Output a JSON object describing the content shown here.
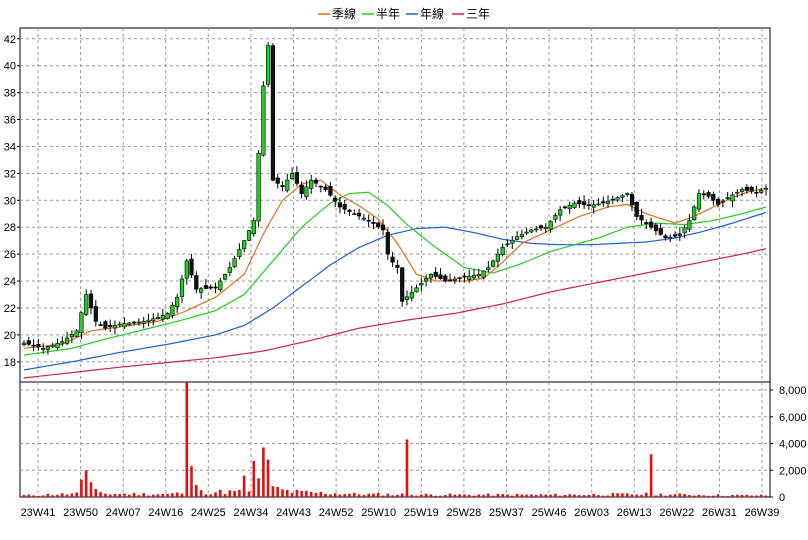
{
  "chart_data": {
    "type": "candlestick",
    "legend": [
      {
        "name": "季線",
        "color": "#e07020"
      },
      {
        "name": "半年",
        "color": "#22cc22"
      },
      {
        "name": "年線",
        "color": "#2060d0"
      },
      {
        "name": "三年",
        "color": "#cc2060"
      }
    ],
    "price_axis": {
      "ylim": [
        16.5,
        42.8
      ],
      "ticks": [
        18,
        20,
        22,
        24,
        26,
        28,
        30,
        32,
        34,
        36,
        38,
        40,
        42
      ]
    },
    "volume_axis": {
      "ylim": [
        0,
        8600
      ],
      "ticks": [
        "0",
        "2,000",
        "4,000",
        "6,000",
        "8,000"
      ],
      "tick_values": [
        0,
        2000,
        4000,
        6000,
        8000
      ]
    },
    "x_ticks": [
      "23W41",
      "23W50",
      "24W07",
      "24W16",
      "24W25",
      "24W34",
      "24W43",
      "24W52",
      "25W10",
      "25W19",
      "25W28",
      "25W37",
      "25W46",
      "26W03",
      "26W13",
      "26W22",
      "26W31",
      "26W39"
    ],
    "anchors": {
      "close": [
        [
          0,
          19.4
        ],
        [
          4,
          19.0
        ],
        [
          8,
          19.5
        ],
        [
          11,
          20.3
        ],
        [
          13,
          23.0
        ],
        [
          15,
          21.0
        ],
        [
          17,
          20.5
        ],
        [
          20,
          20.8
        ],
        [
          25,
          21.0
        ],
        [
          28,
          21.3
        ],
        [
          30,
          21.6
        ],
        [
          32,
          22.8
        ],
        [
          34,
          25.5
        ],
        [
          36,
          23.4
        ],
        [
          40,
          23.5
        ],
        [
          43,
          25.0
        ],
        [
          46,
          27.0
        ],
        [
          48,
          28.5
        ],
        [
          50,
          38.5
        ],
        [
          51,
          41.5
        ],
        [
          52,
          31.5
        ],
        [
          54,
          31.0
        ],
        [
          56,
          32.0
        ],
        [
          58,
          30.5
        ],
        [
          60,
          31.5
        ],
        [
          63,
          30.8
        ],
        [
          66,
          29.5
        ],
        [
          69,
          29.0
        ],
        [
          72,
          28.5
        ],
        [
          75,
          27.8
        ],
        [
          76,
          26.0
        ],
        [
          77,
          25.4
        ],
        [
          78,
          25.0
        ],
        [
          79,
          22.5
        ],
        [
          82,
          23.5
        ],
        [
          85,
          24.5
        ],
        [
          88,
          24.0
        ],
        [
          92,
          24.3
        ],
        [
          95,
          24.5
        ],
        [
          97,
          25.0
        ],
        [
          100,
          26.5
        ],
        [
          103,
          27.3
        ],
        [
          106,
          27.8
        ],
        [
          109,
          28.0
        ],
        [
          112,
          29.3
        ],
        [
          115,
          29.8
        ],
        [
          118,
          29.6
        ],
        [
          121,
          29.8
        ],
        [
          124,
          30.2
        ],
        [
          126,
          30.5
        ],
        [
          128,
          28.8
        ],
        [
          131,
          28.0
        ],
        [
          134,
          27.2
        ],
        [
          137,
          27.4
        ],
        [
          139,
          28.5
        ],
        [
          141,
          30.5
        ],
        [
          143,
          30.3
        ],
        [
          145,
          29.7
        ],
        [
          147,
          30.2
        ],
        [
          150,
          30.8
        ],
        [
          153,
          30.6
        ],
        [
          155,
          30.9
        ]
      ],
      "q_ma": [
        [
          0,
          19.0
        ],
        [
          8,
          19.3
        ],
        [
          14,
          20.3
        ],
        [
          20,
          20.6
        ],
        [
          28,
          21.0
        ],
        [
          34,
          21.8
        ],
        [
          40,
          22.8
        ],
        [
          46,
          24.5
        ],
        [
          50,
          27.5
        ],
        [
          54,
          30.0
        ],
        [
          58,
          31.2
        ],
        [
          62,
          31.5
        ],
        [
          66,
          30.4
        ],
        [
          70,
          29.6
        ],
        [
          74,
          28.6
        ],
        [
          78,
          26.8
        ],
        [
          82,
          24.5
        ],
        [
          86,
          24.0
        ],
        [
          92,
          24.0
        ],
        [
          96,
          24.2
        ],
        [
          100,
          25.4
        ],
        [
          104,
          26.8
        ],
        [
          110,
          27.8
        ],
        [
          116,
          28.8
        ],
        [
          122,
          29.5
        ],
        [
          126,
          29.7
        ],
        [
          130,
          29.0
        ],
        [
          136,
          28.3
        ],
        [
          140,
          28.8
        ],
        [
          144,
          29.5
        ],
        [
          148,
          30.2
        ],
        [
          152,
          30.7
        ],
        [
          155,
          30.9
        ]
      ],
      "h_ma": [
        [
          0,
          18.5
        ],
        [
          10,
          19.0
        ],
        [
          16,
          19.6
        ],
        [
          24,
          20.3
        ],
        [
          32,
          21.0
        ],
        [
          40,
          21.8
        ],
        [
          46,
          23.0
        ],
        [
          52,
          25.5
        ],
        [
          58,
          28.0
        ],
        [
          64,
          29.8
        ],
        [
          68,
          30.5
        ],
        [
          72,
          30.6
        ],
        [
          76,
          29.6
        ],
        [
          80,
          28.2
        ],
        [
          86,
          26.5
        ],
        [
          92,
          25.0
        ],
        [
          98,
          24.6
        ],
        [
          104,
          25.3
        ],
        [
          110,
          26.2
        ],
        [
          116,
          26.8
        ],
        [
          120,
          27.2
        ],
        [
          126,
          28.0
        ],
        [
          132,
          28.3
        ],
        [
          138,
          28.2
        ],
        [
          144,
          28.5
        ],
        [
          150,
          29.0
        ],
        [
          155,
          29.5
        ]
      ],
      "y_ma": [
        [
          0,
          17.4
        ],
        [
          10,
          18.0
        ],
        [
          20,
          18.7
        ],
        [
          30,
          19.3
        ],
        [
          40,
          20.0
        ],
        [
          46,
          20.7
        ],
        [
          52,
          22.0
        ],
        [
          58,
          23.6
        ],
        [
          64,
          25.2
        ],
        [
          70,
          26.5
        ],
        [
          76,
          27.4
        ],
        [
          82,
          27.9
        ],
        [
          88,
          28.0
        ],
        [
          94,
          27.6
        ],
        [
          100,
          27.1
        ],
        [
          106,
          26.8
        ],
        [
          112,
          26.7
        ],
        [
          118,
          26.7
        ],
        [
          124,
          26.8
        ],
        [
          130,
          26.9
        ],
        [
          136,
          27.2
        ],
        [
          142,
          27.7
        ],
        [
          148,
          28.3
        ],
        [
          155,
          29.1
        ]
      ],
      "t_ma": [
        [
          0,
          16.8
        ],
        [
          20,
          17.6
        ],
        [
          40,
          18.3
        ],
        [
          50,
          18.8
        ],
        [
          60,
          19.6
        ],
        [
          70,
          20.5
        ],
        [
          80,
          21.1
        ],
        [
          90,
          21.6
        ],
        [
          100,
          22.3
        ],
        [
          110,
          23.2
        ],
        [
          120,
          23.9
        ],
        [
          130,
          24.6
        ],
        [
          140,
          25.3
        ],
        [
          150,
          26.0
        ],
        [
          155,
          26.4
        ]
      ],
      "vol_base": [
        [
          0,
          150
        ],
        [
          12,
          300
        ],
        [
          30,
          250
        ],
        [
          36,
          450
        ],
        [
          46,
          450
        ],
        [
          50,
          900
        ],
        [
          56,
          450
        ],
        [
          70,
          250
        ],
        [
          90,
          200
        ],
        [
          110,
          200
        ],
        [
          130,
          250
        ],
        [
          150,
          150
        ],
        [
          155,
          150
        ]
      ]
    },
    "volume_spikes": [
      [
        12,
        1300
      ],
      [
        13,
        2000
      ],
      [
        14,
        1100
      ],
      [
        15,
        600
      ],
      [
        34,
        8600
      ],
      [
        35,
        2300
      ],
      [
        36,
        900
      ],
      [
        46,
        1600
      ],
      [
        48,
        2700
      ],
      [
        49,
        1400
      ],
      [
        50,
        3700
      ],
      [
        51,
        2800
      ],
      [
        80,
        4300
      ],
      [
        131,
        3200
      ]
    ]
  }
}
